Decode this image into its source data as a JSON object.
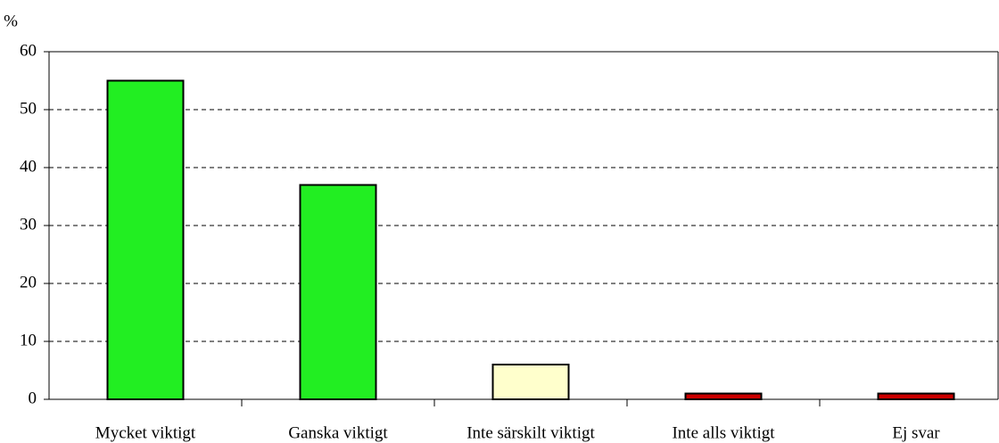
{
  "chart_data": {
    "type": "bar",
    "y_label": "%",
    "categories": [
      "Mycket viktigt",
      "Ganska viktigt",
      "Inte särskilt viktigt",
      "Inte alls viktigt",
      "Ej svar"
    ],
    "values": [
      55,
      37,
      6,
      1,
      1
    ],
    "colors": [
      "#22ee22",
      "#22ee22",
      "#ffffcc",
      "#cc0000",
      "#cc0000"
    ],
    "ylim": [
      0,
      60
    ],
    "yticks": [
      0,
      10,
      20,
      30,
      40,
      50,
      60
    ],
    "grid": true
  }
}
